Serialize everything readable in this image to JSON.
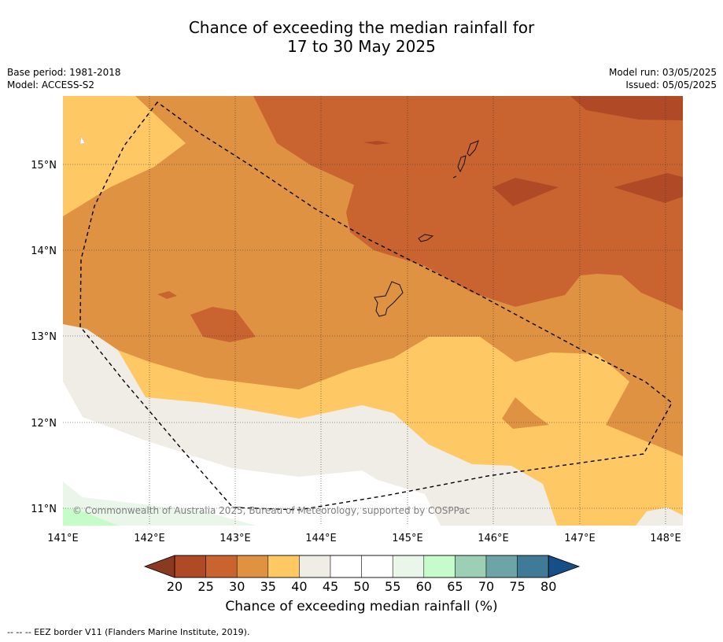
{
  "header": {
    "title_line1": "Chance of exceeding the median rainfall for",
    "title_line2": "17 to 30 May 2025",
    "base_period": "Base period: 1981-2018",
    "model": "Model: ACCESS-S2",
    "model_run": "Model run: 03/05/2025",
    "issued": "Issued: 05/05/2025"
  },
  "map": {
    "lon_labels": [
      "141°E",
      "142°E",
      "143°E",
      "144°E",
      "145°E",
      "146°E",
      "147°E",
      "148°E"
    ],
    "lat_labels": [
      "15°N",
      "14°N",
      "13°N",
      "12°N",
      "11°N"
    ],
    "copyright": "© Commonwealth of Australia 2025, Bureau of Meteorology, supported by COSPPac",
    "colors": {
      "c20_25": "#b04a26",
      "c25_30": "#c96430",
      "c30_35": "#e09243",
      "c35_40": "#fec964",
      "c40_45": "#f0ece6",
      "c45_55": "#ffffff",
      "c55_60": "#eaf6ea",
      "c60_65": "#c6fbca"
    }
  },
  "colorbar": {
    "ticks": [
      "20",
      "25",
      "30",
      "35",
      "40",
      "45",
      "50",
      "55",
      "60",
      "65",
      "70",
      "75",
      "80"
    ],
    "colors": [
      "#b04a26",
      "#c96430",
      "#e09243",
      "#fec964",
      "#f0ece6",
      "#ffffff",
      "#ffffff",
      "#eaf6ea",
      "#c6fbca",
      "#9dcfb7",
      "#6da5a6",
      "#3f7a97"
    ],
    "under_color": "#8b3a22",
    "over_color": "#164e87",
    "label": "Chance of exceeding median rainfall (%)"
  },
  "footnote": "--  --  -- EEZ border V11 (Flanders Marine Institute, 2019)."
}
